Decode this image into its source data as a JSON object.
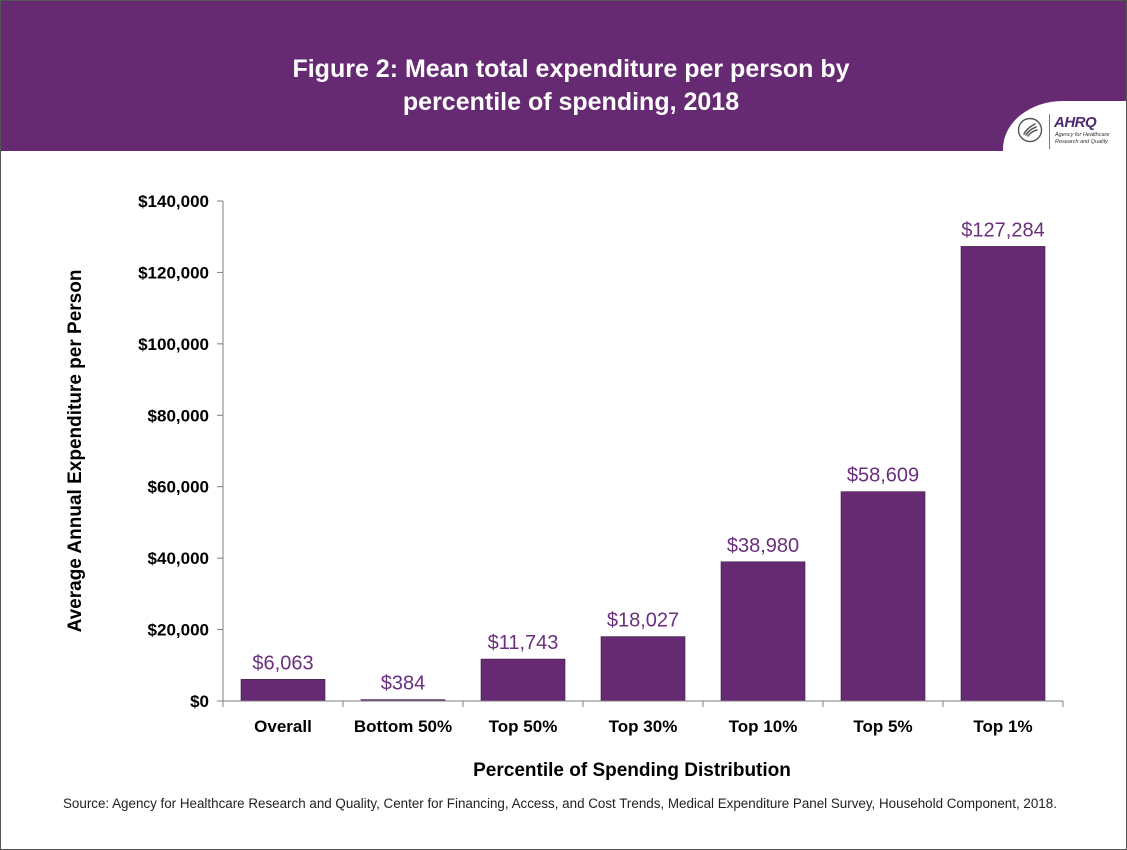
{
  "figure": {
    "title_line1": "Figure 2: Mean total expenditure per person by",
    "title_line2": "percentile of spending, 2018",
    "logo_name": "AHRQ",
    "logo_sub_line1": "Agency for Healthcare",
    "logo_sub_line2": "Research and Quality",
    "source": "Source: Agency for Healthcare Research and Quality, Center for Financing, Access, and Cost Trends, Medical Expenditure Panel Survey, Household Component, 2018."
  },
  "colors": {
    "header": "#662a73",
    "bar": "#662a73",
    "data_label": "#6b2f7e",
    "text": "#000000"
  },
  "chart_data": {
    "type": "bar",
    "title": "Figure 2: Mean total expenditure per person by percentile of spending, 2018",
    "xlabel": "Percentile of Spending Distribution",
    "ylabel": "Average Annual Expenditure per Person",
    "categories": [
      "Overall",
      "Bottom 50%",
      "Top 50%",
      "Top 30%",
      "Top 10%",
      "Top 5%",
      "Top 1%"
    ],
    "values": [
      6063,
      384,
      11743,
      18027,
      38980,
      58609,
      127284
    ],
    "value_labels": [
      "$6,063",
      "$384",
      "$11,743",
      "$18,027",
      "$38,980",
      "$58,609",
      "$127,284"
    ],
    "ylim": [
      0,
      140000
    ],
    "yticks": [
      0,
      20000,
      40000,
      60000,
      80000,
      100000,
      120000,
      140000
    ],
    "ytick_labels": [
      "$0",
      "$20,000",
      "$40,000",
      "$60,000",
      "$80,000",
      "$100,000",
      "$120,000",
      "$140,000"
    ],
    "grid": false,
    "legend": "none"
  }
}
